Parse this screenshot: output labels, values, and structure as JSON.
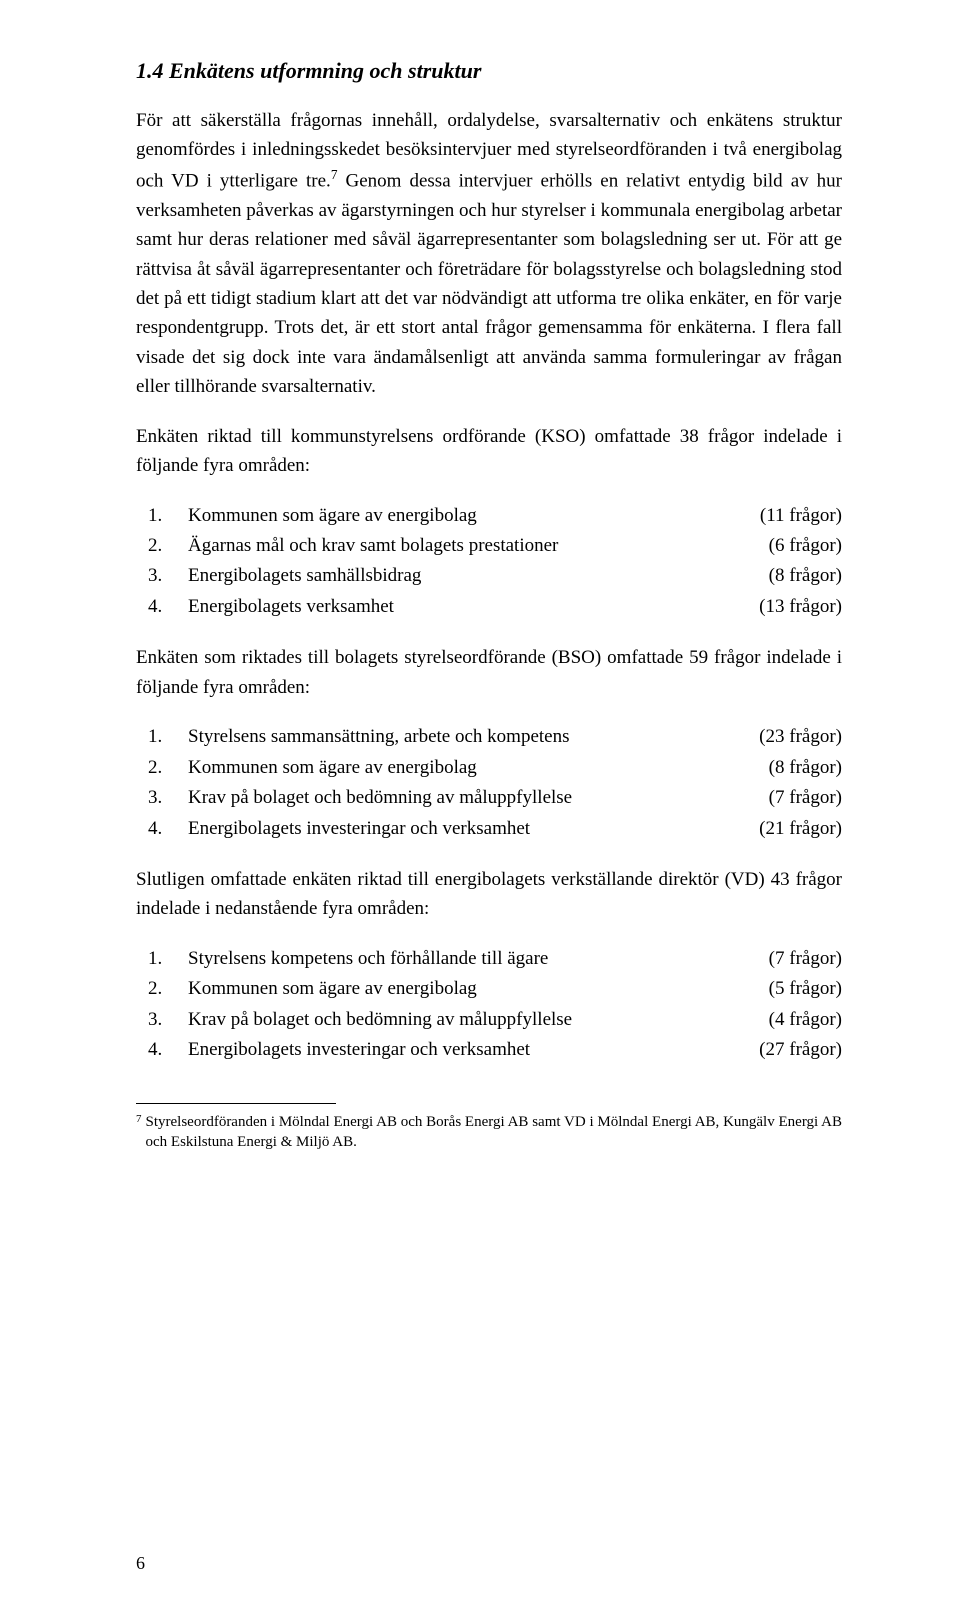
{
  "heading": "1.4  Enkätens utformning och struktur",
  "para1_before_sup": "För att säkerställa frågornas innehåll, ordalydelse, svarsalternativ och enkätens struktur genomfördes i inledningsskedet besöksintervjuer med styrelseordföranden i två energibolag och VD i ytterligare tre.",
  "sup": "7",
  "para1_after_sup": " Genom dessa intervjuer erhölls en relativt entydig bild av hur verksamheten påverkas av ägarstyrningen och hur styrelser i kommunala energibolag arbetar samt hur deras relationer med såväl ägarrepresentanter som bolagsledning ser ut. För att ge rättvisa åt såväl ägarrepresentanter och företrädare för bolagsstyrelse och bolagsledning stod det på ett tidigt stadium klart att det var nödvändigt att utforma tre olika enkäter, en för varje respondentgrupp. Trots det, är ett stort antal frågor gemensamma för enkäterna. I flera fall visade det sig dock inte vara ändamålsenligt att använda samma formuleringar av frågan eller tillhörande svarsalternativ.",
  "para2": "Enkäten riktad till kommunstyrelsens ordförande (KSO) omfattade 38 frågor indelade i följande fyra områden:",
  "list1": [
    {
      "num": "1.",
      "label": "Kommunen som ägare av energibolag",
      "count": "(11 frågor)"
    },
    {
      "num": "2.",
      "label": "Ägarnas mål och krav samt bolagets prestationer",
      "count": "(6 frågor)"
    },
    {
      "num": "3.",
      "label": "Energibolagets samhällsbidrag",
      "count": "(8 frågor)"
    },
    {
      "num": "4.",
      "label": "Energibolagets verksamhet",
      "count": "(13 frågor)"
    }
  ],
  "para3": "Enkäten som riktades till bolagets styrelseordförande (BSO) omfattade 59 frågor indelade i följande fyra områden:",
  "list2": [
    {
      "num": "1.",
      "label": "Styrelsens sammansättning, arbete och kompetens",
      "count": "(23 frågor)"
    },
    {
      "num": "2.",
      "label": "Kommunen som ägare av energibolag",
      "count": "(8 frågor)"
    },
    {
      "num": "3.",
      "label": "Krav på bolaget och bedömning av måluppfyllelse",
      "count": "(7 frågor)"
    },
    {
      "num": "4.",
      "label": "Energibolagets investeringar och verksamhet",
      "count": "(21 frågor)"
    }
  ],
  "para4": "Slutligen omfattade enkäten riktad till energibolagets verkställande direktör (VD) 43 frågor indelade i nedanstående fyra områden:",
  "list3": [
    {
      "num": "1.",
      "label": "Styrelsens kompetens och förhållande till ägare",
      "count": "(7 frågor)"
    },
    {
      "num": "2.",
      "label": "Kommunen som ägare av energibolag",
      "count": "(5 frågor)"
    },
    {
      "num": "3.",
      "label": "Krav på bolaget och bedömning av måluppfyllelse",
      "count": "(4 frågor)"
    },
    {
      "num": "4.",
      "label": "Energibolagets investeringar och verksamhet",
      "count": "(27 frågor)"
    }
  ],
  "footnote_marker": "7",
  "footnote_text": "Styrelseordföranden i Mölndal Energi AB och Borås Energi AB samt VD i Mölndal Energi AB, Kungälv Energi AB och Eskilstuna Energi & Miljö AB.",
  "page_number": "6"
}
